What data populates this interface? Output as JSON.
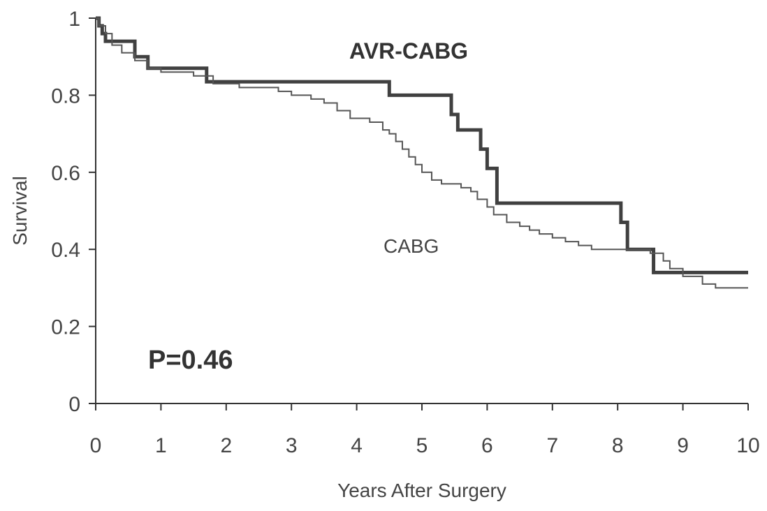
{
  "chart_data": {
    "type": "line",
    "xlabel": "Years After Surgery",
    "ylabel": "Survival",
    "xlim": [
      0,
      10
    ],
    "ylim": [
      0,
      1
    ],
    "x_ticks": [
      0,
      1,
      2,
      3,
      4,
      5,
      6,
      7,
      8,
      9,
      10
    ],
    "y_ticks": [
      0,
      0.2,
      0.4,
      0.6,
      0.8,
      1
    ],
    "y_tick_labels": [
      "0",
      "0.2",
      "0.4",
      "0.6",
      "0.8",
      "1"
    ],
    "grid": false,
    "step": true,
    "annotations": {
      "avr_cabg_label": "AVR-CABG",
      "cabg_label": "CABG",
      "p_value": "P=0.46"
    },
    "series": [
      {
        "name": "AVR-CABG",
        "color": "#404040",
        "points": [
          [
            0,
            1.0
          ],
          [
            0.05,
            0.98
          ],
          [
            0.1,
            0.96
          ],
          [
            0.15,
            0.94
          ],
          [
            0.6,
            0.9
          ],
          [
            0.8,
            0.87
          ],
          [
            1.7,
            0.835
          ],
          [
            4.5,
            0.8
          ],
          [
            5.45,
            0.75
          ],
          [
            5.55,
            0.71
          ],
          [
            5.9,
            0.66
          ],
          [
            6.0,
            0.61
          ],
          [
            6.15,
            0.52
          ],
          [
            8.05,
            0.47
          ],
          [
            8.15,
            0.4
          ],
          [
            8.55,
            0.34
          ],
          [
            10.0,
            0.34
          ]
        ]
      },
      {
        "name": "CABG",
        "color": "#555555",
        "points": [
          [
            0,
            1.0
          ],
          [
            0.05,
            0.98
          ],
          [
            0.15,
            0.96
          ],
          [
            0.25,
            0.93
          ],
          [
            0.4,
            0.91
          ],
          [
            0.6,
            0.89
          ],
          [
            0.8,
            0.87
          ],
          [
            1.0,
            0.86
          ],
          [
            1.5,
            0.85
          ],
          [
            1.8,
            0.83
          ],
          [
            2.2,
            0.82
          ],
          [
            2.8,
            0.81
          ],
          [
            3.0,
            0.8
          ],
          [
            3.3,
            0.79
          ],
          [
            3.5,
            0.78
          ],
          [
            3.7,
            0.76
          ],
          [
            3.9,
            0.74
          ],
          [
            4.2,
            0.73
          ],
          [
            4.4,
            0.71
          ],
          [
            4.5,
            0.7
          ],
          [
            4.6,
            0.68
          ],
          [
            4.7,
            0.66
          ],
          [
            4.8,
            0.64
          ],
          [
            4.9,
            0.62
          ],
          [
            5.0,
            0.6
          ],
          [
            5.15,
            0.58
          ],
          [
            5.3,
            0.57
          ],
          [
            5.6,
            0.56
          ],
          [
            5.75,
            0.55
          ],
          [
            5.85,
            0.53
          ],
          [
            6.0,
            0.51
          ],
          [
            6.1,
            0.49
          ],
          [
            6.3,
            0.47
          ],
          [
            6.5,
            0.46
          ],
          [
            6.65,
            0.45
          ],
          [
            6.8,
            0.44
          ],
          [
            7.0,
            0.43
          ],
          [
            7.2,
            0.42
          ],
          [
            7.4,
            0.41
          ],
          [
            7.6,
            0.4
          ],
          [
            8.5,
            0.39
          ],
          [
            8.7,
            0.37
          ],
          [
            8.8,
            0.35
          ],
          [
            9.0,
            0.33
          ],
          [
            9.3,
            0.31
          ],
          [
            9.5,
            0.3
          ],
          [
            10.0,
            0.3
          ]
        ]
      }
    ]
  }
}
